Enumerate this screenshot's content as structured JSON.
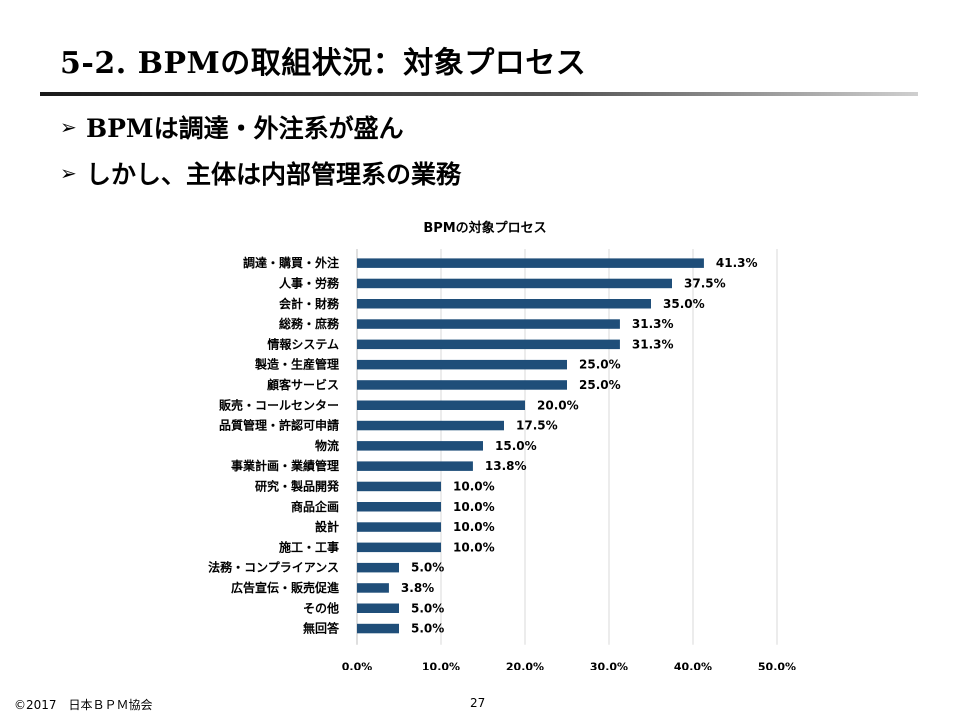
{
  "slide": {
    "title": "5-2. BPMの取組状況：対象プロセス",
    "bullets": [
      {
        "icon": "arrow-bullet-icon",
        "text": "BPMは調達・外注系が盛ん"
      },
      {
        "icon": "arrow-bullet-icon",
        "text": "しかし、主体は内部管理系の業務"
      }
    ]
  },
  "chart_data": {
    "type": "bar",
    "orientation": "horizontal",
    "title": "BPMの対象プロセス",
    "categories": [
      "調達・購買・外注",
      "人事・労務",
      "会計・財務",
      "総務・庶務",
      "情報システム",
      "製造・生産管理",
      "顧客サービス",
      "販売・コールセンター",
      "品質管理・許認可申請",
      "物流",
      "事業計画・業績管理",
      "研究・製品開発",
      "商品企画",
      "設計",
      "施工・工事",
      "法務・コンプライアンス",
      "広告宣伝・販売促進",
      "その他",
      "無回答"
    ],
    "values": [
      41.3,
      37.5,
      35.0,
      31.3,
      31.3,
      25.0,
      25.0,
      20.0,
      17.5,
      15.0,
      13.8,
      10.0,
      10.0,
      10.0,
      10.0,
      5.0,
      3.8,
      5.0,
      5.0
    ],
    "value_labels": [
      "41.3%",
      "37.5%",
      "35.0%",
      "31.3%",
      "31.3%",
      "25.0%",
      "25.0%",
      "20.0%",
      "17.5%",
      "15.0%",
      "13.8%",
      "10.0%",
      "10.0%",
      "10.0%",
      "10.0%",
      "5.0%",
      "3.8%",
      "5.0%",
      "5.0%"
    ],
    "xlim": [
      0,
      50
    ],
    "xticks": [
      0,
      10,
      20,
      30,
      40,
      50
    ],
    "xtick_labels": [
      "0.0%",
      "10.0%",
      "20.0%",
      "30.0%",
      "40.0%",
      "50.0%"
    ],
    "grid": "vertical",
    "bar_color": "#1f4e79",
    "grid_color": "#d9d9d9"
  },
  "footer": {
    "copyright": "©2017　日本ＢＰＭ協会",
    "page_number": "27"
  }
}
